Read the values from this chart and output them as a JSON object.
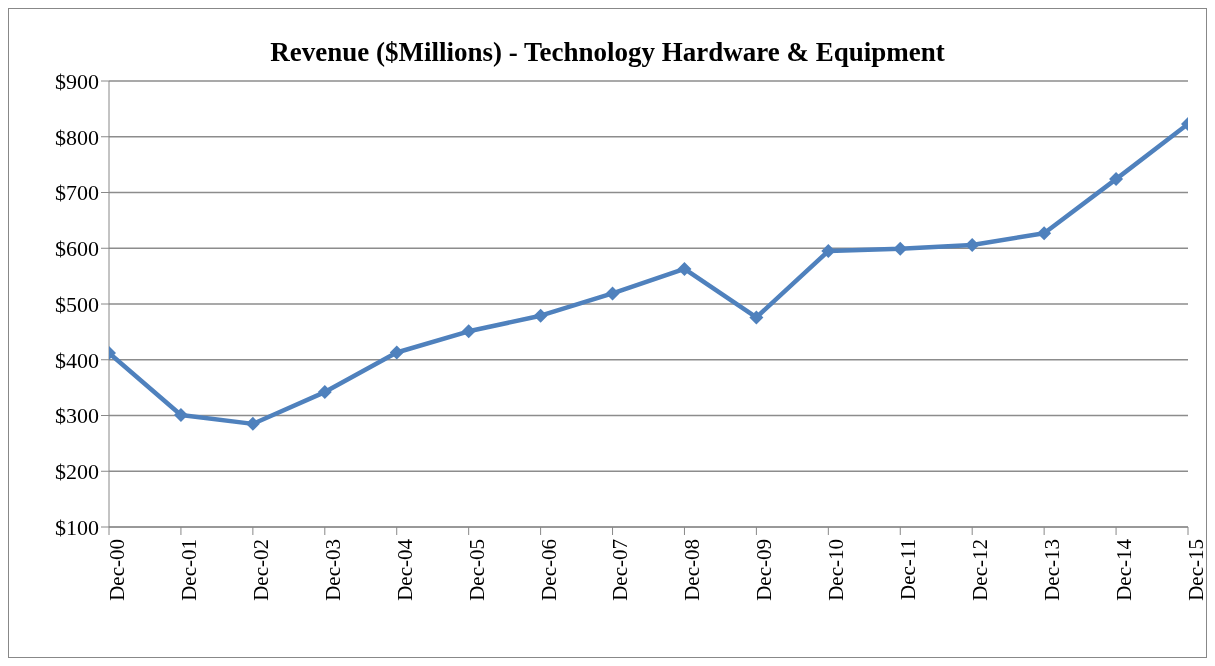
{
  "chart_data": {
    "type": "line",
    "title": "Revenue ($Millions) - Technology Hardware & Equipment",
    "categories": [
      "Dec-00",
      "Dec-01",
      "Dec-02",
      "Dec-03",
      "Dec-04",
      "Dec-05",
      "Dec-06",
      "Dec-07",
      "Dec-08",
      "Dec-09",
      "Dec-10",
      "Dec-11",
      "Dec-12",
      "Dec-13",
      "Dec-14",
      "Dec-15"
    ],
    "series": [
      {
        "color": "#4f81bd",
        "values": [
          412,
          301,
          285,
          342,
          413,
          451,
          479,
          519,
          563,
          476,
          595,
          599,
          606,
          627,
          724,
          823
        ]
      }
    ],
    "ylim": [
      100,
      900
    ],
    "yticks": [
      {
        "value": 100,
        "label": "$100"
      },
      {
        "value": 200,
        "label": "$200"
      },
      {
        "value": 300,
        "label": "$300"
      },
      {
        "value": 400,
        "label": "$400"
      },
      {
        "value": 500,
        "label": "$500"
      },
      {
        "value": 600,
        "label": "$600"
      },
      {
        "value": 700,
        "label": "$700"
      },
      {
        "value": 800,
        "label": "$800"
      },
      {
        "value": 900,
        "label": "$900"
      }
    ],
    "grid": "y",
    "legend": false,
    "marker": "diamond",
    "line_style": "solid"
  }
}
